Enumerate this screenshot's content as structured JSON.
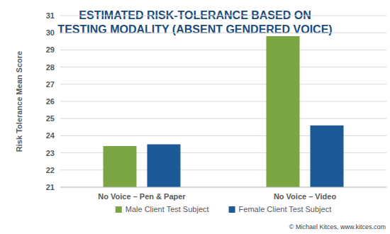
{
  "chart_data": {
    "type": "bar",
    "title": "ESTIMATED RISK-TOLERANCE BASED ON TESTING MODALITY (ABSENT GENDERED VOICE)",
    "y_label": "Risk Tolerance Mean Score",
    "categories": [
      "No Voice – Pen & Paper",
      "No Voice – Video"
    ],
    "series": [
      {
        "name": "Male Client Test Subject",
        "color": "#7ba443",
        "values": [
          23.4,
          29.8
        ]
      },
      {
        "name": "Female Client Test Subject",
        "color": "#1c5a97",
        "values": [
          23.5,
          24.6
        ]
      }
    ],
    "ylim": [
      21,
      31
    ],
    "yticks": [
      21,
      22,
      23,
      24,
      25,
      26,
      27,
      28,
      29,
      30,
      31
    ],
    "grid": true,
    "legend": "bottom",
    "annotations": [
      "© Michael Kitces, www.kitces.com"
    ]
  }
}
